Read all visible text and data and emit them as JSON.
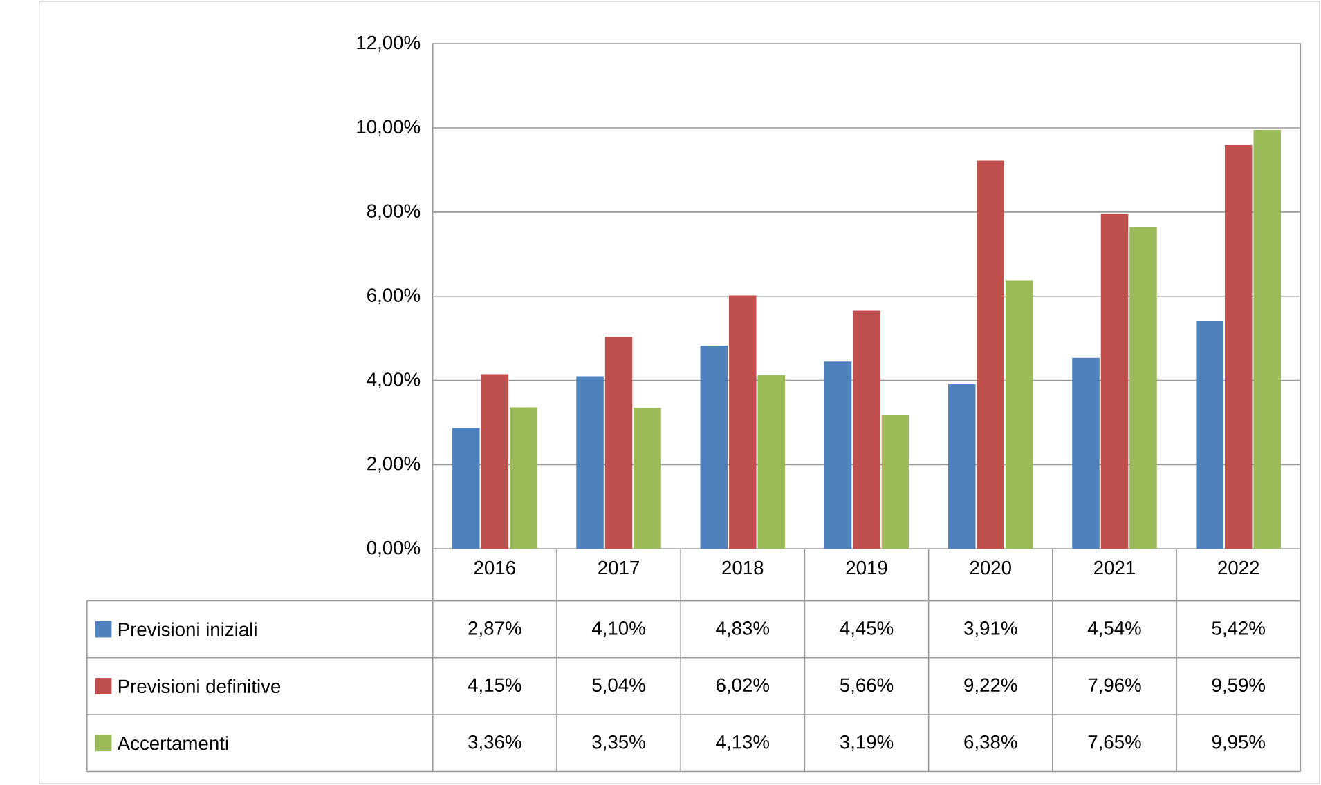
{
  "chart_data": {
    "type": "bar",
    "categories": [
      "2016",
      "2017",
      "2018",
      "2019",
      "2020",
      "2021",
      "2022"
    ],
    "series": [
      {
        "name": "Previsioni iniziali",
        "color": "#4f81bd",
        "values": [
          2.87,
          4.1,
          4.83,
          4.45,
          3.91,
          4.54,
          5.42
        ],
        "value_labels": [
          "2,87%",
          "4,10%",
          "4,83%",
          "4,45%",
          "3,91%",
          "4,54%",
          "5,42%"
        ]
      },
      {
        "name": "Previsioni definitive",
        "color": "#c0504d",
        "values": [
          4.15,
          5.04,
          6.02,
          5.66,
          9.22,
          7.96,
          9.59
        ],
        "value_labels": [
          "4,15%",
          "5,04%",
          "6,02%",
          "5,66%",
          "9,22%",
          "7,96%",
          "9,59%"
        ]
      },
      {
        "name": "Accertamenti",
        "color": "#9bbb59",
        "values": [
          3.36,
          3.35,
          4.13,
          3.19,
          6.38,
          7.65,
          9.95
        ],
        "value_labels": [
          "3,36%",
          "3,35%",
          "4,13%",
          "3,19%",
          "6,38%",
          "7,65%",
          "9,95%"
        ]
      }
    ],
    "ylim": [
      0,
      12
    ],
    "yticks": [
      {
        "value": 0,
        "label": "0,00%"
      },
      {
        "value": 2,
        "label": "2,00%"
      },
      {
        "value": 4,
        "label": "4,00%"
      },
      {
        "value": 6,
        "label": "6,00%"
      },
      {
        "value": 8,
        "label": "8,00%"
      },
      {
        "value": 10,
        "label": "10,00%"
      },
      {
        "value": 12,
        "label": "12,00%"
      }
    ],
    "grid": "y",
    "legend": "bottom left"
  }
}
